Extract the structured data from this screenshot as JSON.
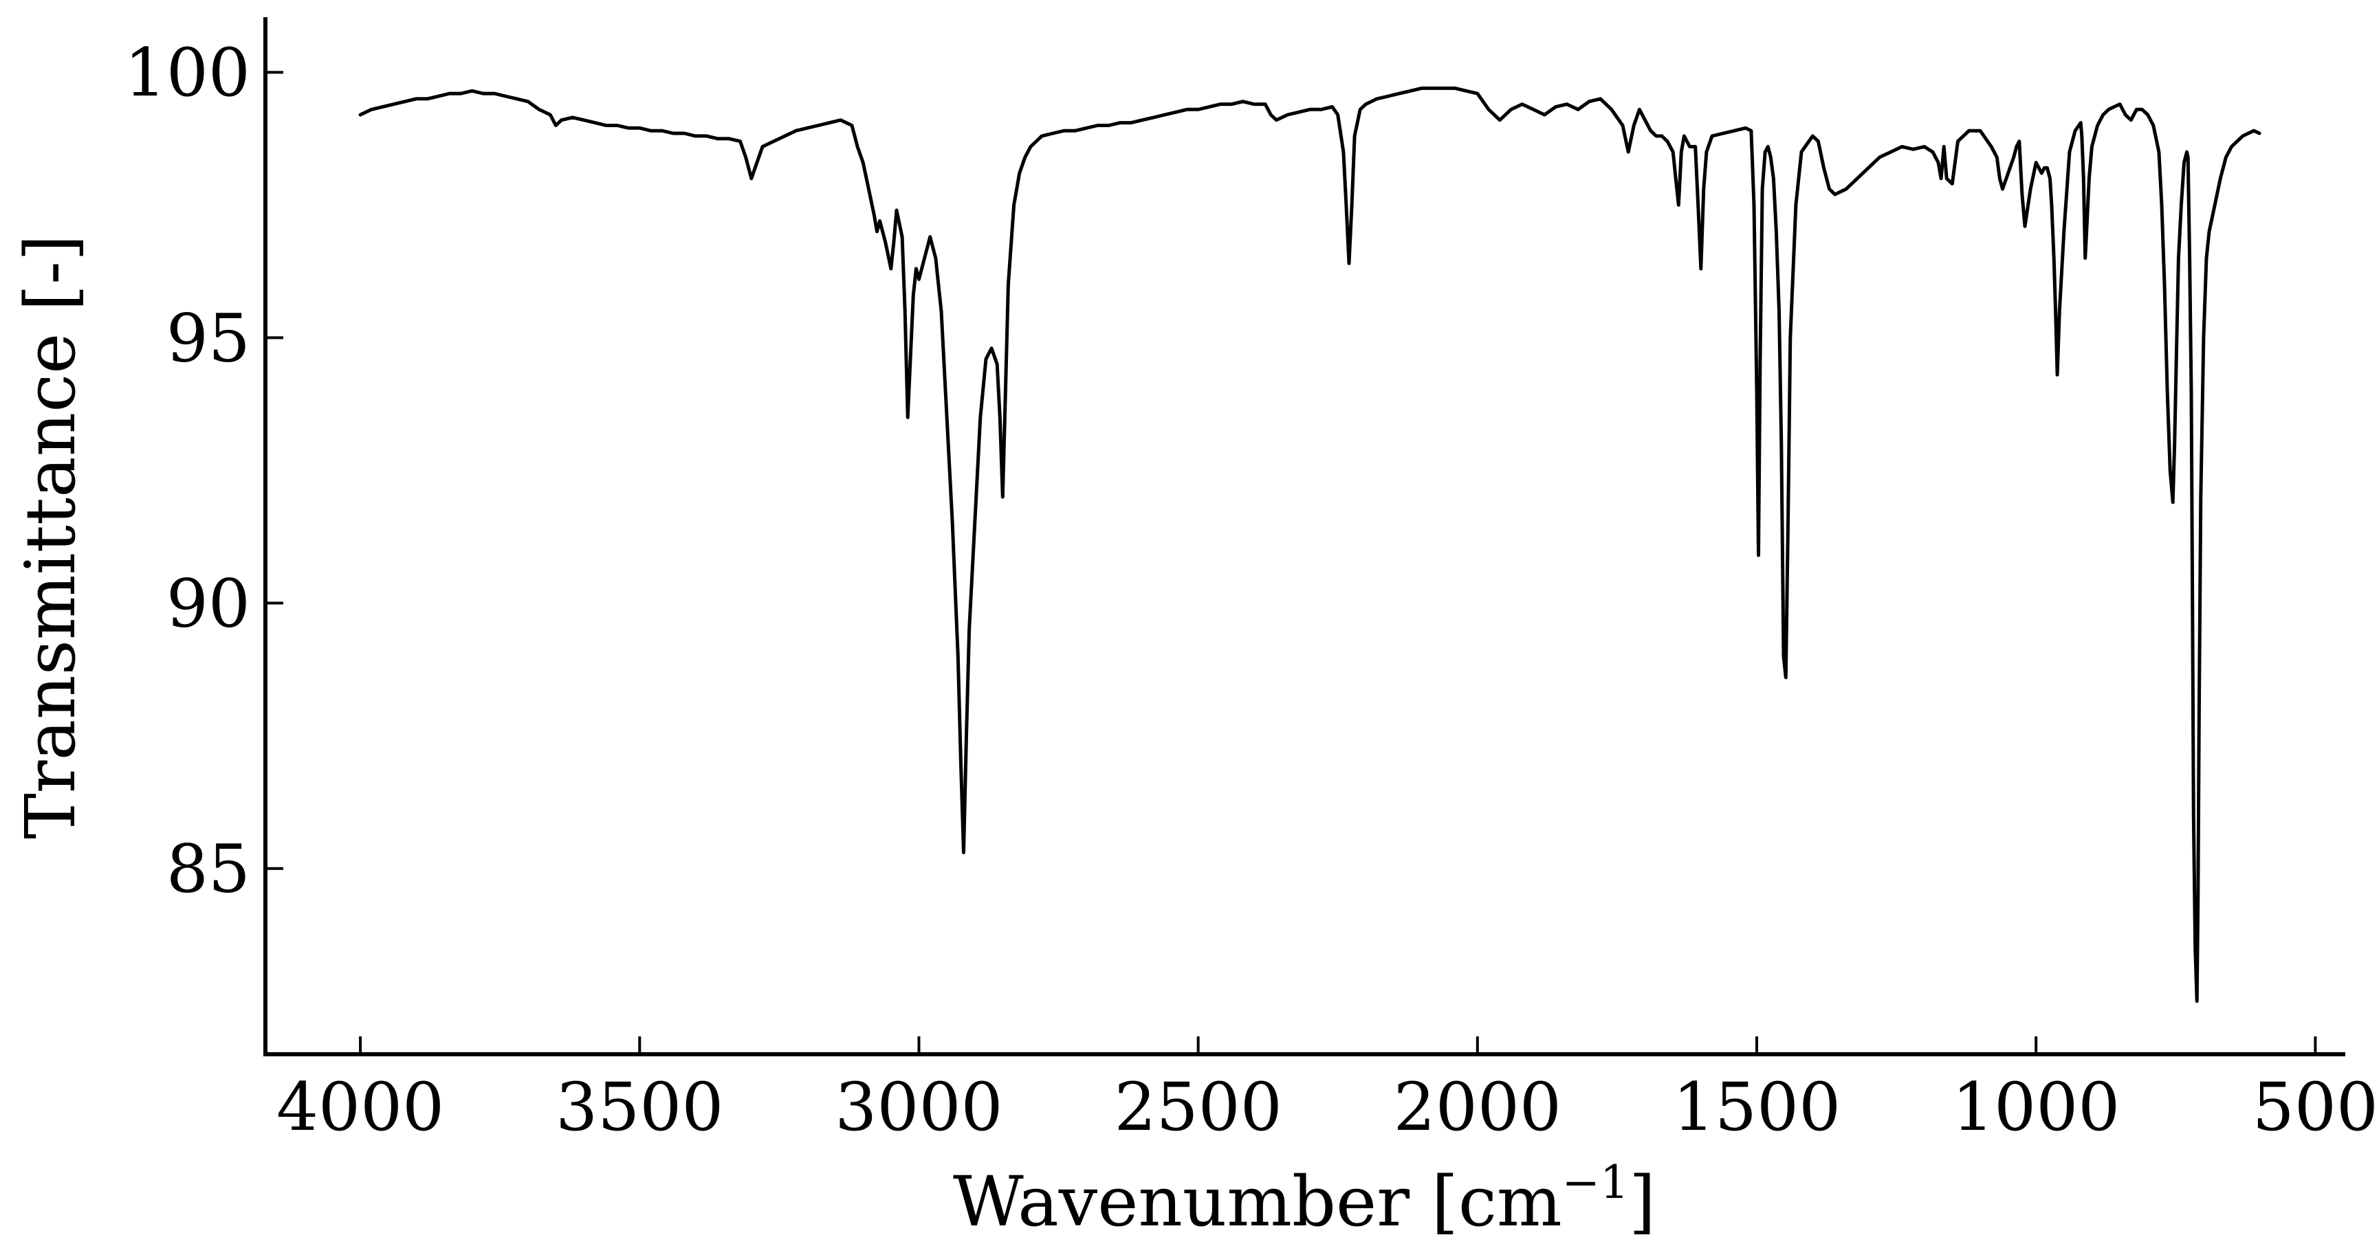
{
  "chart_data": {
    "type": "line",
    "title": "",
    "xlabel": "Wavenumber [cm",
    "xlabel_sup": "−1",
    "xlabel_tail": "]",
    "ylabel": "Transmittance [-]",
    "xlim": [
      4170,
      450
    ],
    "ylim": [
      81.5,
      101
    ],
    "x_reversed": true,
    "grid": false,
    "legend": "none",
    "x_ticks": [
      4000,
      3500,
      3000,
      2500,
      2000,
      1500,
      1000,
      500
    ],
    "y_ticks": [
      85,
      90,
      95,
      100
    ],
    "line_color": "#000000",
    "series": [
      {
        "x": [
          4000,
          3980,
          3960,
          3940,
          3920,
          3900,
          3880,
          3860,
          3840,
          3820,
          3800,
          3780,
          3760,
          3740,
          3720,
          3700,
          3680,
          3660,
          3650,
          3640,
          3620,
          3600,
          3580,
          3560,
          3540,
          3520,
          3500,
          3480,
          3460,
          3440,
          3420,
          3400,
          3380,
          3360,
          3340,
          3320,
          3310,
          3300,
          3290,
          3280,
          3260,
          3240,
          3220,
          3200,
          3180,
          3160,
          3140,
          3120,
          3110,
          3100,
          3090,
          3080,
          3075,
          3070,
          3060,
          3050,
          3045,
          3040,
          3030,
          3025,
          3020,
          3010,
          3005,
          3000,
          2990,
          2980,
          2970,
          2960,
          2950,
          2940,
          2930,
          2925,
          2920,
          2915,
          2910,
          2900,
          2890,
          2880,
          2870,
          2860,
          2855,
          2850,
          2845,
          2840,
          2830,
          2820,
          2810,
          2800,
          2780,
          2760,
          2740,
          2720,
          2700,
          2680,
          2660,
          2640,
          2620,
          2600,
          2580,
          2560,
          2540,
          2520,
          2500,
          2480,
          2460,
          2440,
          2420,
          2400,
          2380,
          2370,
          2360,
          2340,
          2320,
          2300,
          2280,
          2260,
          2250,
          2240,
          2235,
          2230,
          2225,
          2220,
          2210,
          2200,
          2180,
          2160,
          2140,
          2120,
          2100,
          2080,
          2060,
          2040,
          2020,
          2000,
          1980,
          1960,
          1940,
          1920,
          1900,
          1880,
          1860,
          1840,
          1820,
          1800,
          1780,
          1760,
          1740,
          1730,
          1720,
          1710,
          1700,
          1690,
          1680,
          1670,
          1660,
          1650,
          1645,
          1640,
          1635,
          1630,
          1620,
          1610,
          1605,
          1600,
          1595,
          1590,
          1580,
          1560,
          1540,
          1520,
          1510,
          1505,
          1500,
          1497,
          1494,
          1490,
          1485,
          1480,
          1475,
          1470,
          1465,
          1460,
          1456,
          1452,
          1448,
          1444,
          1440,
          1430,
          1420,
          1400,
          1390,
          1380,
          1370,
          1360,
          1340,
          1320,
          1300,
          1280,
          1260,
          1240,
          1220,
          1200,
          1185,
          1175,
          1170,
          1165,
          1160,
          1150,
          1140,
          1120,
          1100,
          1080,
          1070,
          1065,
          1060,
          1050,
          1040,
          1035,
          1030,
          1025,
          1020,
          1010,
          1000,
          990,
          985,
          980,
          975,
          972,
          968,
          965,
          962,
          958,
          950,
          940,
          930,
          920,
          918,
          915,
          912,
          910,
          905,
          900,
          890,
          880,
          870,
          860,
          850,
          840,
          830,
          820,
          810,
          800,
          790,
          780,
          775,
          770,
          765,
          760,
          755,
          752,
          748,
          745,
          740,
          735,
          730,
          728,
          725,
          722,
          720,
          718,
          715,
          712,
          710,
          708,
          705,
          700,
          695,
          690,
          680,
          670,
          660,
          650,
          640,
          630,
          620,
          610,
          600
        ],
        "y": [
          99.2,
          99.3,
          99.35,
          99.4,
          99.45,
          99.5,
          99.5,
          99.55,
          99.6,
          99.6,
          99.65,
          99.6,
          99.6,
          99.55,
          99.5,
          99.45,
          99.3,
          99.2,
          99.0,
          99.1,
          99.15,
          99.1,
          99.05,
          99.0,
          99.0,
          98.95,
          98.95,
          98.9,
          98.9,
          98.85,
          98.85,
          98.8,
          98.8,
          98.75,
          98.75,
          98.7,
          98.4,
          98.0,
          98.3,
          98.6,
          98.7,
          98.8,
          98.9,
          98.95,
          99.0,
          99.05,
          99.1,
          99.0,
          98.6,
          98.3,
          97.8,
          97.3,
          97.0,
          97.2,
          96.8,
          96.3,
          96.8,
          97.4,
          96.9,
          95.5,
          93.5,
          95.8,
          96.3,
          96.1,
          96.5,
          96.9,
          96.5,
          95.5,
          93.5,
          91.5,
          89.0,
          87.0,
          85.3,
          87.5,
          89.5,
          91.5,
          93.5,
          94.6,
          94.8,
          94.5,
          93.5,
          92.0,
          94.0,
          96.0,
          97.5,
          98.1,
          98.4,
          98.6,
          98.8,
          98.85,
          98.9,
          98.9,
          98.95,
          99.0,
          99.0,
          99.05,
          99.05,
          99.1,
          99.15,
          99.2,
          99.25,
          99.3,
          99.3,
          99.35,
          99.4,
          99.4,
          99.45,
          99.4,
          99.4,
          99.2,
          99.1,
          99.2,
          99.25,
          99.3,
          99.3,
          99.35,
          99.2,
          98.5,
          97.5,
          96.4,
          97.5,
          98.8,
          99.3,
          99.4,
          99.5,
          99.55,
          99.6,
          99.65,
          99.7,
          99.7,
          99.7,
          99.7,
          99.65,
          99.6,
          99.3,
          99.1,
          99.3,
          99.4,
          99.3,
          99.2,
          99.35,
          99.4,
          99.3,
          99.45,
          99.5,
          99.3,
          99.0,
          98.5,
          99.0,
          99.3,
          99.1,
          98.9,
          98.8,
          98.8,
          98.7,
          98.5,
          98.0,
          97.5,
          98.5,
          98.8,
          98.6,
          98.6,
          97.5,
          96.3,
          97.8,
          98.5,
          98.8,
          98.85,
          98.9,
          98.95,
          98.9,
          97.5,
          94.0,
          90.9,
          94.5,
          97.8,
          98.5,
          98.6,
          98.4,
          98.0,
          97.0,
          95.5,
          93.0,
          89.0,
          88.6,
          91.5,
          95.0,
          97.5,
          98.5,
          98.8,
          98.7,
          98.2,
          97.8,
          97.7,
          97.8,
          98.0,
          98.2,
          98.4,
          98.5,
          98.6,
          98.55,
          98.6,
          98.5,
          98.3,
          98.0,
          98.6,
          98.0,
          97.9,
          98.7,
          98.9,
          98.9,
          98.6,
          98.4,
          98.0,
          97.8,
          98.1,
          98.4,
          98.6,
          98.7,
          97.7,
          97.1,
          97.8,
          98.3,
          98.1,
          98.2,
          98.2,
          98.0,
          97.5,
          96.5,
          95.5,
          94.3,
          95.5,
          97.0,
          98.5,
          98.9,
          99.05,
          98.8,
          98.0,
          96.5,
          96.9,
          98.0,
          98.6,
          99.0,
          99.2,
          99.3,
          99.35,
          99.4,
          99.2,
          99.1,
          99.3,
          99.3,
          99.2,
          99.0,
          98.5,
          97.5,
          96.0,
          94.0,
          92.5,
          91.9,
          93.0,
          95.0,
          96.5,
          97.5,
          98.3,
          98.5,
          98.4,
          96.5,
          94.0,
          90.0,
          86.0,
          83.5,
          82.5,
          84.5,
          88.0,
          92.0,
          95.0,
          96.5,
          97.0,
          97.5,
          98.0,
          98.4,
          98.6,
          98.7,
          98.8,
          98.85,
          98.9,
          98.85
        ]
      }
    ]
  }
}
